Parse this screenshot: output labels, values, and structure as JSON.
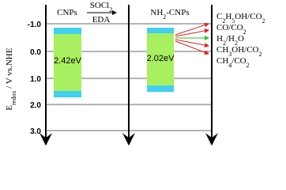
{
  "axis": {
    "label": [
      [
        "E",
        "n"
      ],
      [
        "redox",
        "s"
      ],
      [
        " / V vs.NHE",
        "n"
      ]
    ],
    "ticks": [
      "-1.0",
      "0.0",
      "1.0",
      "2.0",
      "3.0"
    ]
  },
  "materials": [
    {
      "name": [
        [
          "CNPs",
          "n"
        ]
      ],
      "gap": "2.42eV"
    },
    {
      "name": [
        [
          "NH",
          "n"
        ],
        [
          "2",
          "s"
        ],
        [
          "-CNPs",
          "n"
        ]
      ],
      "gap": "2.02eV"
    }
  ],
  "reaction": {
    "above": [
      [
        "SOCl",
        "n"
      ],
      [
        "2",
        "s"
      ]
    ],
    "below": [
      [
        "EDA",
        "n"
      ]
    ]
  },
  "couples": [
    [
      [
        "C",
        "n"
      ],
      [
        "2",
        "s"
      ],
      [
        "H",
        "n"
      ],
      [
        "5",
        "s"
      ],
      [
        "OH/CO",
        "n"
      ],
      [
        "2",
        "s"
      ]
    ],
    [
      [
        "CO/CO",
        "n"
      ],
      [
        "2",
        "s"
      ]
    ],
    [
      [
        "H",
        "n"
      ],
      [
        "2",
        "s"
      ],
      [
        "/H",
        "n"
      ],
      [
        "2",
        "s"
      ],
      [
        "O",
        "n"
      ]
    ],
    [
      [
        "CH",
        "n"
      ],
      [
        "3",
        "s"
      ],
      [
        "OH/CO",
        "n"
      ],
      [
        "2",
        "s"
      ]
    ],
    [
      [
        "CH",
        "n"
      ],
      [
        "4",
        "s"
      ],
      [
        "/CO",
        "n"
      ],
      [
        "2",
        "s"
      ]
    ]
  ]
}
